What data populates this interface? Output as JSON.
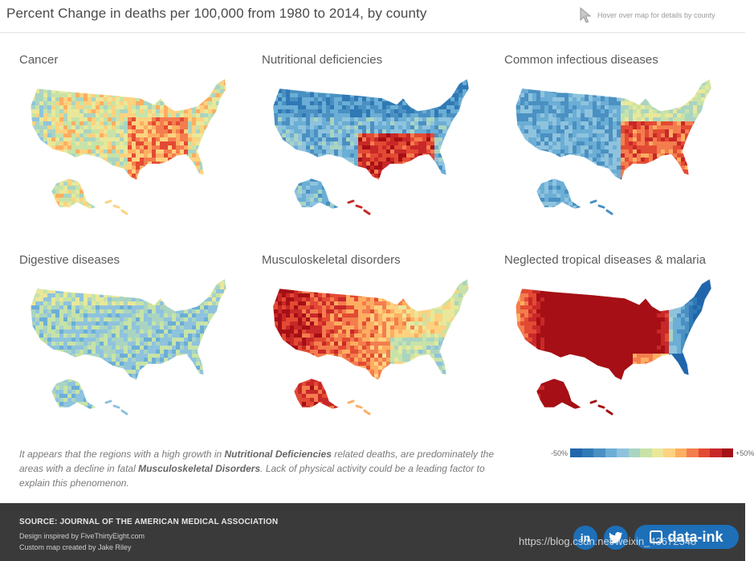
{
  "header": {
    "title": "Percent Change in deaths per 100,000 from 1980 to 2014, by county",
    "hover_hint": "Hover over map for details by county"
  },
  "maps": [
    {
      "title": "Cancer",
      "scheme": "mixed-greens-oranges"
    },
    {
      "title": "Nutritional deficiencies",
      "scheme": "blue-north-red-south"
    },
    {
      "title": "Common infectious diseases",
      "scheme": "blue-west-red-southeast"
    },
    {
      "title": "Digestive diseases",
      "scheme": "blue-green"
    },
    {
      "title": "Musculoskeletal disorders",
      "scheme": "red-west-orange-east"
    },
    {
      "title": "Neglected tropical diseases & malaria",
      "scheme": "red-center-blue-edges"
    }
  ],
  "note": {
    "part1": "It appears that the regions with a high growth in ",
    "bold1": "Nutritional Deficiencies",
    "part2": " related deaths, are predominately the areas with a decline in fatal ",
    "bold2": "Musculoskeletal Disorders",
    "part3": ".  Lack of physical activity could be a leading factor to explain this phenomenon."
  },
  "legend": {
    "min_label": "-50%",
    "max_label": "+50%",
    "colors": [
      "#2166ac",
      "#2f79b5",
      "#4a90c2",
      "#6baed6",
      "#8fc3dd",
      "#a9d4c2",
      "#c7e3a8",
      "#e9e89a",
      "#fdd280",
      "#fdae61",
      "#f47d4e",
      "#e34a33",
      "#c82828",
      "#a50f15"
    ]
  },
  "footer": {
    "source": "SOURCE: JOURNAL OF THE AMERICAN MEDICAL ASSOCIATION",
    "credit1": "Design inspired by FiveThirtyEight.com",
    "credit2": "Custom map created by Jake Riley",
    "linkedin": "in",
    "brand": "data-ink",
    "watermark": "https://blog.csdn.net/weixin_43672348"
  }
}
